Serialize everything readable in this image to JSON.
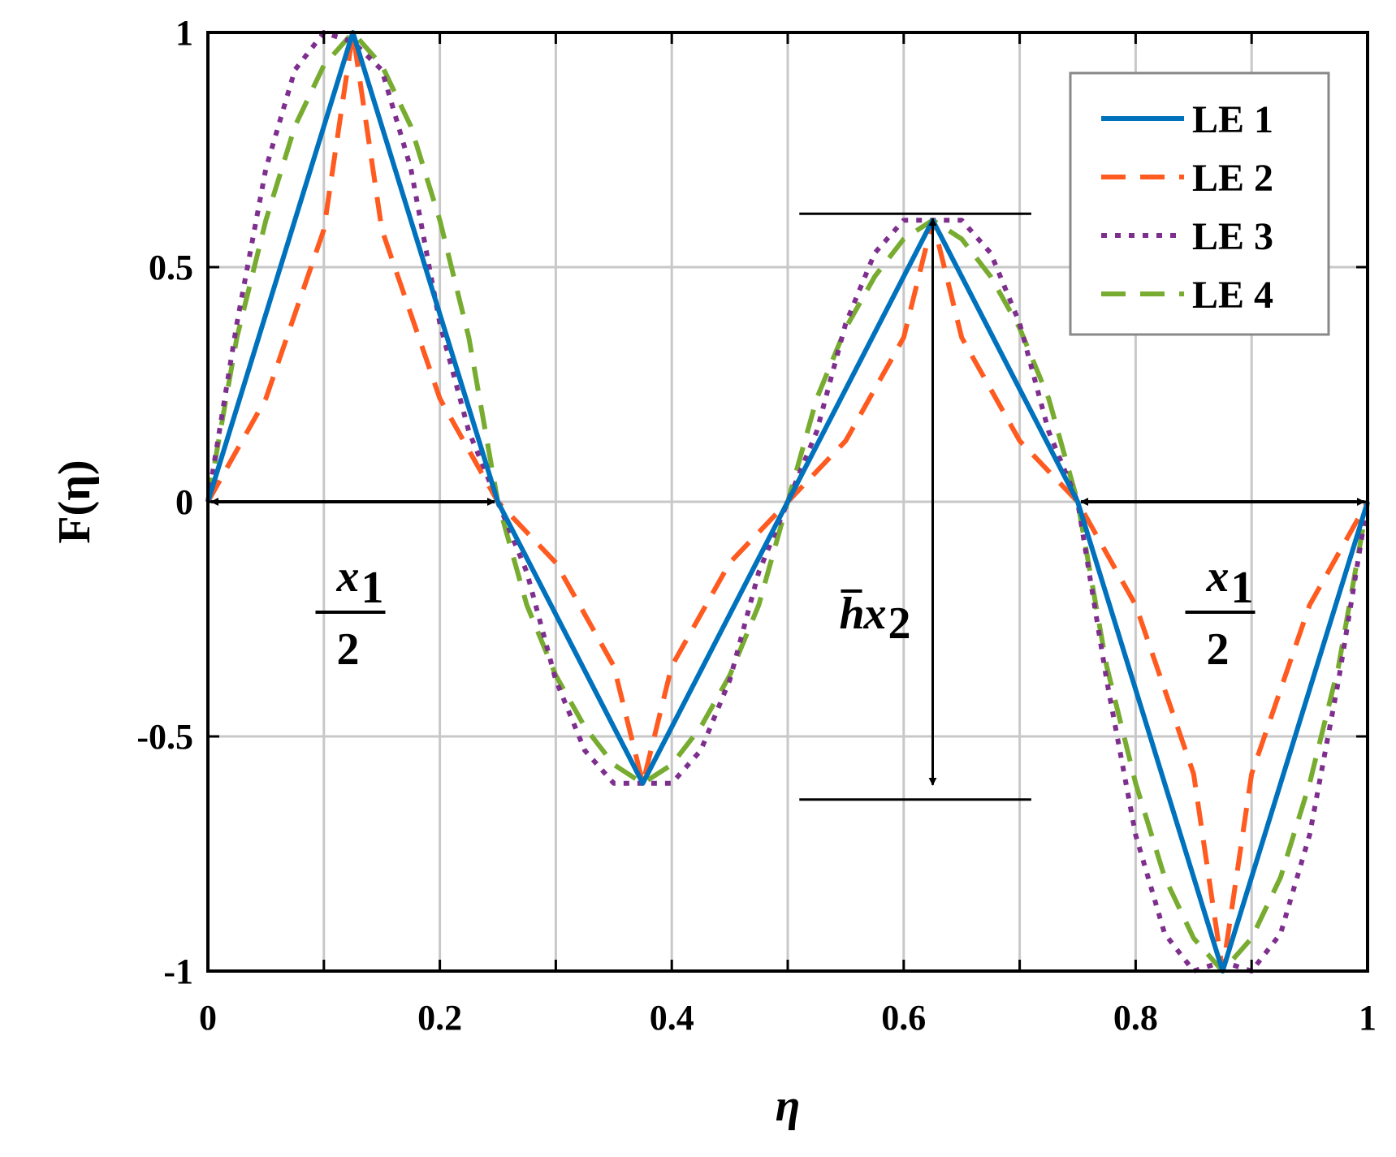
{
  "chart_data": {
    "type": "line",
    "title": "",
    "xlabel": "η",
    "ylabel": "F(η)",
    "xlim": [
      0,
      1
    ],
    "ylim": [
      -1,
      1
    ],
    "grid": true,
    "legend_position": "top-right",
    "xticks": [
      0,
      0.1,
      0.2,
      0.3,
      0.4,
      0.5,
      0.6,
      0.7,
      0.8,
      0.9,
      1
    ],
    "xtick_labels": [
      "0",
      "",
      "0.2",
      "",
      "0.4",
      "",
      "0.6",
      "",
      "0.8",
      "",
      "1"
    ],
    "yticks": [
      1,
      0.5,
      0,
      -0.5,
      -1
    ],
    "ytick_labels": [
      "1",
      "0.5",
      "0",
      "-0.5",
      "-1"
    ],
    "series": [
      {
        "name": "LE 1",
        "color": "#0072BD",
        "style": "solid",
        "x": [
          0,
          0.125,
          0.25,
          0.375,
          0.5,
          0.625,
          0.75,
          0.875,
          1
        ],
        "y": [
          0,
          1,
          0,
          -0.6,
          0,
          0.6,
          0,
          -1,
          0
        ]
      },
      {
        "name": "LE 2",
        "color": "#FF5A1F",
        "style": "dashed",
        "x": [
          0,
          0.05,
          0.1,
          0.125,
          0.15,
          0.2,
          0.25,
          0.3,
          0.35,
          0.375,
          0.4,
          0.45,
          0.5,
          0.55,
          0.6,
          0.625,
          0.65,
          0.7,
          0.75,
          0.8,
          0.85,
          0.875,
          0.9,
          0.95,
          1
        ],
        "y": [
          0,
          0.22,
          0.58,
          1,
          0.58,
          0.22,
          0,
          -0.13,
          -0.35,
          -0.6,
          -0.35,
          -0.13,
          0,
          0.13,
          0.35,
          0.6,
          0.35,
          0.13,
          0,
          -0.22,
          -0.58,
          -1,
          -0.58,
          -0.22,
          0
        ]
      },
      {
        "name": "LE 3",
        "color": "#7E2F8E",
        "style": "dotted",
        "x": [
          0,
          0.025,
          0.05,
          0.075,
          0.1,
          0.125,
          0.15,
          0.175,
          0.2,
          0.225,
          0.25,
          0.275,
          0.3,
          0.325,
          0.35,
          0.375,
          0.4,
          0.425,
          0.45,
          0.475,
          0.5,
          0.525,
          0.55,
          0.575,
          0.6,
          0.625,
          0.65,
          0.675,
          0.7,
          0.725,
          0.75,
          0.775,
          0.8,
          0.825,
          0.85,
          0.875,
          0.9,
          0.925,
          0.95,
          0.975,
          1
        ],
        "y": [
          0,
          0.38,
          0.71,
          0.92,
          1,
          0.98,
          0.92,
          0.71,
          0.38,
          0.15,
          0,
          -0.15,
          -0.38,
          -0.53,
          -0.6,
          -0.6,
          -0.6,
          -0.53,
          -0.38,
          -0.15,
          0,
          0.15,
          0.38,
          0.53,
          0.6,
          0.6,
          0.6,
          0.53,
          0.38,
          0.15,
          0,
          -0.38,
          -0.71,
          -0.92,
          -1,
          -0.98,
          -1,
          -0.92,
          -0.71,
          -0.38,
          0
        ]
      },
      {
        "name": "LE 4",
        "color": "#77AC30",
        "style": "dashed",
        "x": [
          0,
          0.025,
          0.05,
          0.075,
          0.1,
          0.125,
          0.15,
          0.175,
          0.2,
          0.225,
          0.25,
          0.275,
          0.3,
          0.325,
          0.35,
          0.375,
          0.4,
          0.425,
          0.45,
          0.475,
          0.5,
          0.525,
          0.55,
          0.575,
          0.6,
          0.625,
          0.65,
          0.675,
          0.7,
          0.725,
          0.75,
          0.775,
          0.8,
          0.825,
          0.85,
          0.875,
          0.9,
          0.925,
          0.95,
          0.975,
          1
        ],
        "y": [
          0,
          0.35,
          0.6,
          0.8,
          0.93,
          1,
          0.93,
          0.8,
          0.6,
          0.35,
          0,
          -0.22,
          -0.37,
          -0.48,
          -0.56,
          -0.6,
          -0.56,
          -0.48,
          -0.37,
          -0.22,
          0,
          0.22,
          0.37,
          0.48,
          0.56,
          0.6,
          0.56,
          0.48,
          0.37,
          0.22,
          0,
          -0.35,
          -0.6,
          -0.8,
          -0.93,
          -1,
          -0.93,
          -0.8,
          -0.6,
          -0.35,
          0
        ]
      }
    ],
    "annotations": [
      {
        "id": "half-period-left",
        "text_numerator": "x",
        "text_subscript": "1",
        "text_denominator": "2",
        "x_range": [
          0,
          0.25
        ],
        "y": 0
      },
      {
        "id": "amplitude",
        "text_bar": "h",
        "text_main": "x",
        "text_subscript": "2",
        "x": 0.625,
        "y_range": [
          -0.6,
          0.6
        ]
      },
      {
        "id": "half-period-right",
        "text_numerator": "x",
        "text_subscript": "1",
        "text_denominator": "2",
        "x_range": [
          0.75,
          1
        ],
        "y": 0
      }
    ]
  }
}
